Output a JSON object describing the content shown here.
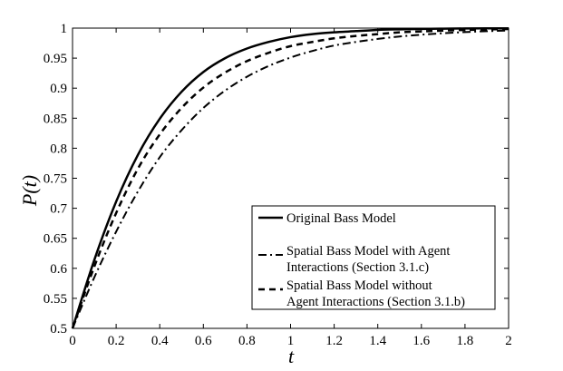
{
  "chart_data": {
    "type": "line",
    "title": "",
    "xlabel": "t",
    "ylabel": "P(t)",
    "xlim": [
      0,
      2
    ],
    "ylim": [
      0.5,
      1
    ],
    "grid": false,
    "legend_position": "bottom-right",
    "x_ticks": [
      0,
      0.2,
      0.4,
      0.6,
      0.8,
      1,
      1.2,
      1.4,
      1.6,
      1.8,
      2
    ],
    "x_tick_labels": [
      "0",
      "0.2",
      "0.4",
      "0.6",
      "0.8",
      "1",
      "1.2",
      "1.4",
      "1.6",
      "1.8",
      "2"
    ],
    "y_ticks": [
      0.5,
      0.55,
      0.6,
      0.65,
      0.7,
      0.75,
      0.8,
      0.85,
      0.9,
      0.95,
      1
    ],
    "y_tick_labels": [
      "0.5",
      "0.55",
      "0.6",
      "0.65",
      "0.7",
      "0.75",
      "0.8",
      "0.85",
      "0.9",
      "0.95",
      "1"
    ],
    "x": [
      0,
      0.1,
      0.2,
      0.3,
      0.4,
      0.5,
      0.6,
      0.7,
      0.8,
      0.9,
      1.0,
      1.1,
      1.2,
      1.3,
      1.4,
      1.5,
      1.6,
      1.7,
      1.8,
      1.9,
      2.0
    ],
    "series": [
      {
        "name": "Original Bass Model",
        "style": "solid",
        "values": [
          0.5,
          0.614,
          0.711,
          0.789,
          0.849,
          0.894,
          0.927,
          0.95,
          0.966,
          0.977,
          0.985,
          0.99,
          0.993,
          0.995,
          0.997,
          0.998,
          0.9987,
          0.9991,
          0.9994,
          0.9996,
          0.9997
        ]
      },
      {
        "name": "Spatial Bass Model with Agent Interactions (Section 3.1.c)",
        "style": "dashdot",
        "values": [
          0.5,
          0.585,
          0.661,
          0.728,
          0.785,
          0.83,
          0.867,
          0.896,
          0.919,
          0.937,
          0.951,
          0.962,
          0.971,
          0.977,
          0.982,
          0.986,
          0.989,
          0.9915,
          0.9934,
          0.9949,
          0.996
        ]
      },
      {
        "name": "Spatial Bass Model without Agent Interactions (Section 3.1.b)",
        "style": "dashed",
        "values": [
          0.5,
          0.603,
          0.692,
          0.766,
          0.823,
          0.867,
          0.901,
          0.926,
          0.945,
          0.959,
          0.97,
          0.977,
          0.983,
          0.987,
          0.99,
          0.993,
          0.9945,
          0.9959,
          0.997,
          0.9978,
          0.9984
        ]
      }
    ]
  },
  "legend": {
    "entries": [
      {
        "lines": [
          "Original Bass Model"
        ],
        "style": "solid"
      },
      {
        "lines": [
          "Spatial Bass Model with Agent",
          "Interactions (Section 3.1.c)"
        ],
        "style": "dashdot"
      },
      {
        "lines": [
          "Spatial Bass Model without",
          "Agent Interactions (Section 3.1.b)"
        ],
        "style": "dashed"
      }
    ]
  },
  "colors": {
    "line": "#000000",
    "background": "#ffffff"
  }
}
